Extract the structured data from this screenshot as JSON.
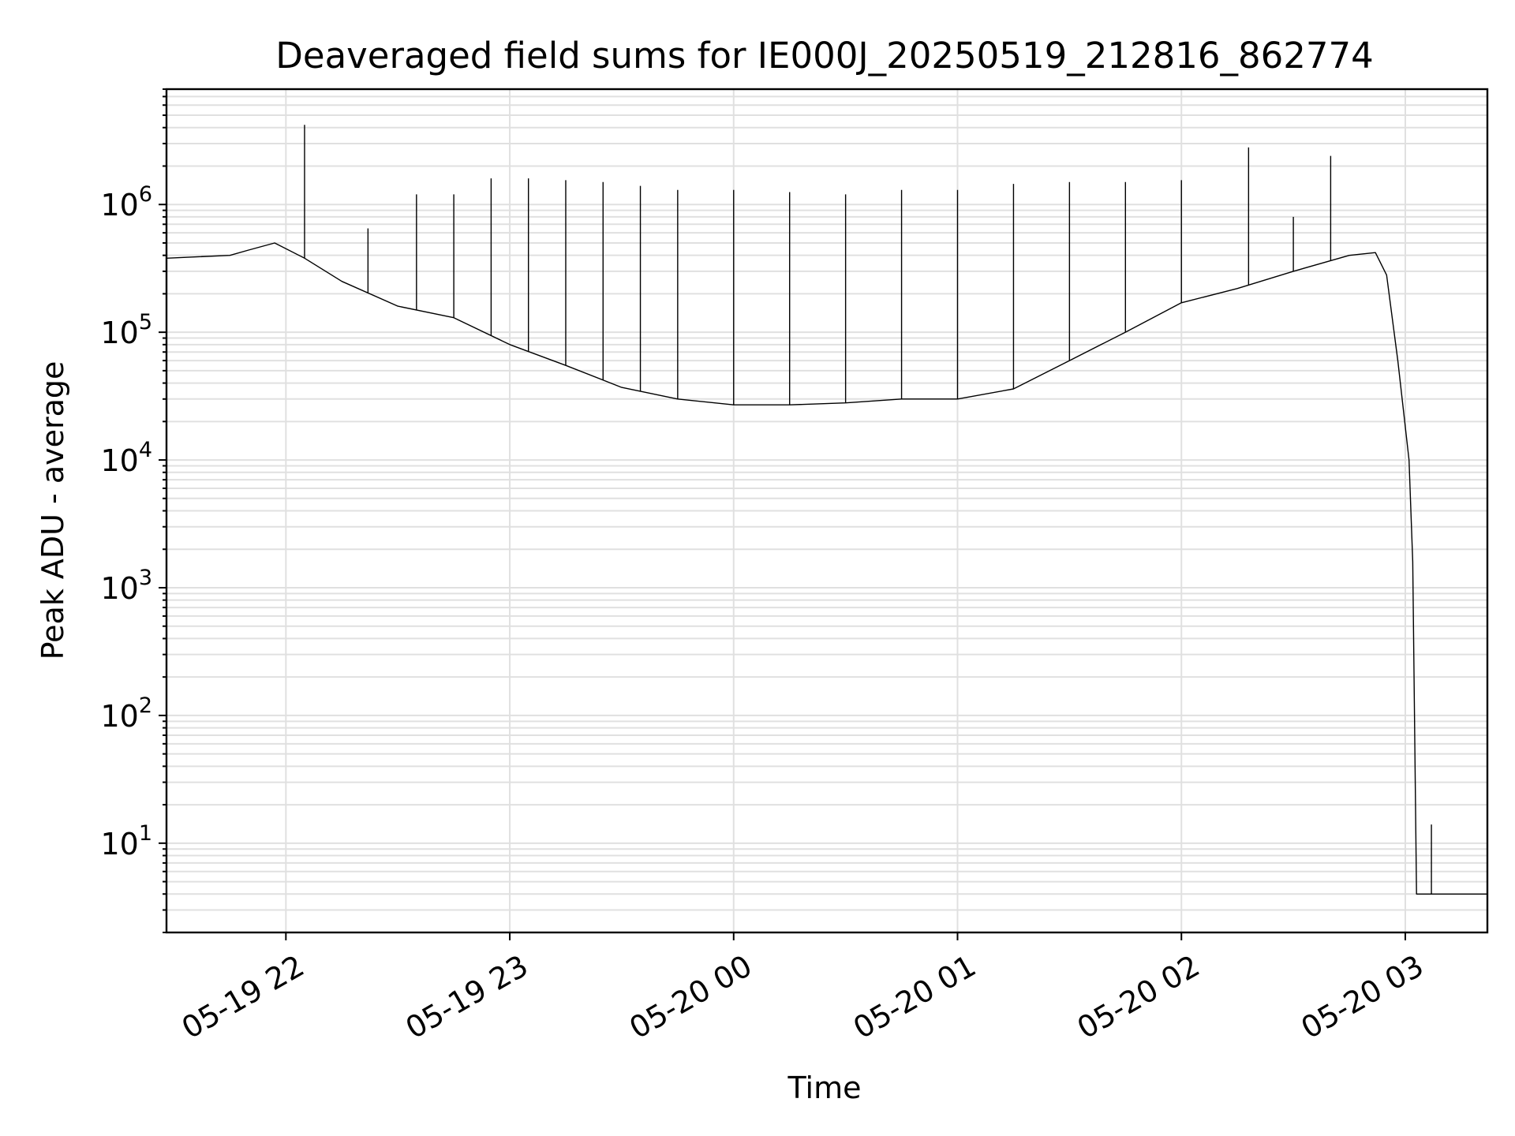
{
  "chart_data": {
    "type": "line",
    "title": "Deaveraged field sums for IE000J_20250519_212816_862774",
    "xlabel": "Time",
    "ylabel": "Peak ADU - average",
    "yscale": "log",
    "ylim": [
      2,
      8000000
    ],
    "xlim": [
      "2025-05-19 21:28",
      "2025-05-20 03:22"
    ],
    "x_ticks": [
      {
        "t": "2025-05-19 22:00",
        "label": "05-19 22"
      },
      {
        "t": "2025-05-19 23:00",
        "label": "05-19 23"
      },
      {
        "t": "2025-05-20 00:00",
        "label": "05-20 00"
      },
      {
        "t": "2025-05-20 01:00",
        "label": "05-20 01"
      },
      {
        "t": "2025-05-20 02:00",
        "label": "05-20 02"
      },
      {
        "t": "2025-05-20 03:00",
        "label": "05-20 03"
      }
    ],
    "y_ticks": [
      {
        "value": 10,
        "base": "10",
        "exp": "1"
      },
      {
        "value": 100,
        "base": "10",
        "exp": "2"
      },
      {
        "value": 1000,
        "base": "10",
        "exp": "3"
      },
      {
        "value": 10000,
        "base": "10",
        "exp": "4"
      },
      {
        "value": 100000,
        "base": "10",
        "exp": "5"
      },
      {
        "value": 1000000,
        "base": "10",
        "exp": "6"
      }
    ],
    "grid": true,
    "series": [
      {
        "color": "#000000",
        "baseline": [
          [
            "2025-05-19 21:28",
            380000
          ],
          [
            "2025-05-19 21:45",
            400000
          ],
          [
            "2025-05-19 21:50",
            440000
          ],
          [
            "2025-05-19 21:57",
            500000
          ],
          [
            "2025-05-19 22:05",
            380000
          ],
          [
            "2025-05-19 22:15",
            250000
          ],
          [
            "2025-05-19 22:30",
            160000
          ],
          [
            "2025-05-19 22:45",
            130000
          ],
          [
            "2025-05-19 23:00",
            80000
          ],
          [
            "2025-05-19 23:15",
            55000
          ],
          [
            "2025-05-19 23:30",
            37000
          ],
          [
            "2025-05-19 23:45",
            30000
          ],
          [
            "2025-05-20 00:00",
            27000
          ],
          [
            "2025-05-20 00:15",
            27000
          ],
          [
            "2025-05-20 00:30",
            28000
          ],
          [
            "2025-05-20 00:45",
            30000
          ],
          [
            "2025-05-20 01:00",
            30000
          ],
          [
            "2025-05-20 01:15",
            36000
          ],
          [
            "2025-05-20 01:30",
            60000
          ],
          [
            "2025-05-20 01:45",
            100000
          ],
          [
            "2025-05-20 02:00",
            170000
          ],
          [
            "2025-05-20 02:15",
            220000
          ],
          [
            "2025-05-20 02:30",
            300000
          ],
          [
            "2025-05-20 02:45",
            400000
          ],
          [
            "2025-05-20 02:52",
            420000
          ],
          [
            "2025-05-20 02:55",
            280000
          ],
          [
            "2025-05-20 02:58",
            60000
          ],
          [
            "2025-05-20 03:01",
            10000
          ],
          [
            "2025-05-20 03:02",
            1600
          ],
          [
            "2025-05-20 03:03",
            4
          ],
          [
            "2025-05-20 03:22",
            4
          ]
        ],
        "spikes": [
          [
            "2025-05-19 22:05",
            4200000
          ],
          [
            "2025-05-19 22:22",
            650000
          ],
          [
            "2025-05-19 22:35",
            1200000
          ],
          [
            "2025-05-19 22:45",
            1200000
          ],
          [
            "2025-05-19 22:55",
            1600000
          ],
          [
            "2025-05-19 23:05",
            1600000
          ],
          [
            "2025-05-19 23:15",
            1550000
          ],
          [
            "2025-05-19 23:25",
            1500000
          ],
          [
            "2025-05-19 23:35",
            1400000
          ],
          [
            "2025-05-19 23:45",
            1300000
          ],
          [
            "2025-05-20 00:00",
            1300000
          ],
          [
            "2025-05-20 00:15",
            1250000
          ],
          [
            "2025-05-20 00:30",
            1200000
          ],
          [
            "2025-05-20 00:45",
            1300000
          ],
          [
            "2025-05-20 01:00",
            1300000
          ],
          [
            "2025-05-20 01:15",
            1450000
          ],
          [
            "2025-05-20 01:30",
            1500000
          ],
          [
            "2025-05-20 01:45",
            1500000
          ],
          [
            "2025-05-20 02:00",
            1550000
          ],
          [
            "2025-05-20 02:18",
            2800000
          ],
          [
            "2025-05-20 02:30",
            800000
          ],
          [
            "2025-05-20 02:40",
            2400000
          ],
          [
            "2025-05-20 03:07",
            14
          ]
        ]
      }
    ]
  }
}
